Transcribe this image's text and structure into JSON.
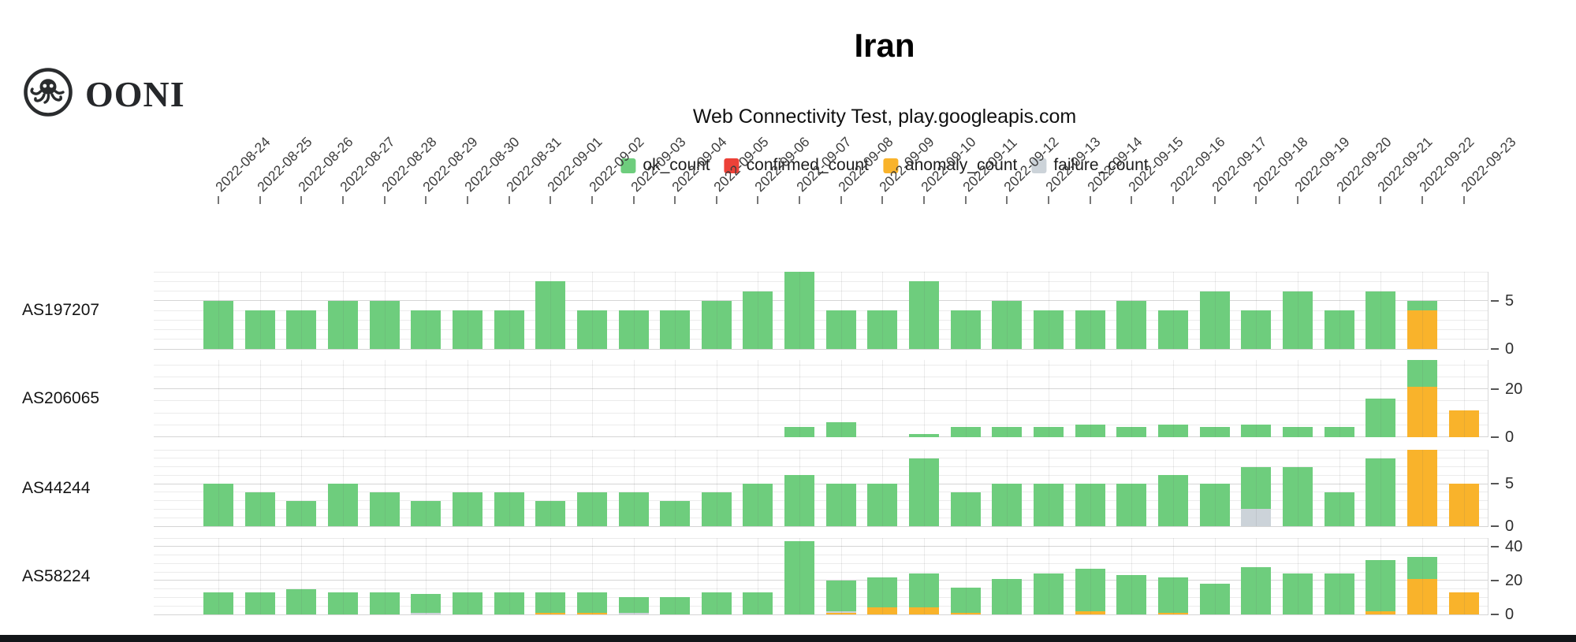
{
  "brand": {
    "logo_text": "OONI"
  },
  "header": {
    "title": "Iran",
    "subtitle": "Web Connectivity Test, play.googleapis.com"
  },
  "legend": [
    {
      "key": "ok",
      "label": "ok_count",
      "color": "#6ecd7d"
    },
    {
      "key": "confirmed",
      "label": "confirmed_count",
      "color": "#ec4138"
    },
    {
      "key": "anomaly",
      "label": "anomaly_count",
      "color": "#f9b32b"
    },
    {
      "key": "failure",
      "label": "failure_count",
      "color": "#ccd3d9"
    }
  ],
  "chart_data": {
    "type": "bar",
    "stacked": true,
    "grid": true,
    "legend_position": "top",
    "stack_order": [
      "anomaly",
      "failure",
      "ok"
    ],
    "x": [
      "2022-08-24",
      "2022-08-25",
      "2022-08-26",
      "2022-08-27",
      "2022-08-28",
      "2022-08-29",
      "2022-08-30",
      "2022-08-31",
      "2022-09-01",
      "2022-09-02",
      "2022-09-03",
      "2022-09-04",
      "2022-09-05",
      "2022-09-06",
      "2022-09-07",
      "2022-09-08",
      "2022-09-09",
      "2022-09-10",
      "2022-09-11",
      "2022-09-12",
      "2022-09-13",
      "2022-09-14",
      "2022-09-15",
      "2022-09-16",
      "2022-09-17",
      "2022-09-18",
      "2022-09-19",
      "2022-09-20",
      "2022-09-21",
      "2022-09-22",
      "2022-09-23"
    ],
    "panels": [
      {
        "label": "AS197207",
        "ylim": [
          0,
          8
        ],
        "grid_step": 1,
        "yticks": [
          0,
          5
        ],
        "series": {
          "ok": [
            5,
            4,
            4,
            5,
            5,
            4,
            4,
            4,
            7,
            4,
            4,
            4,
            5,
            6,
            8,
            4,
            4,
            7,
            4,
            5,
            4,
            4,
            5,
            4,
            6,
            4,
            6,
            4,
            6,
            1,
            0
          ],
          "anomaly": [
            0,
            0,
            0,
            0,
            0,
            0,
            0,
            0,
            0,
            0,
            0,
            0,
            0,
            0,
            0,
            0,
            0,
            0,
            0,
            0,
            0,
            0,
            0,
            0,
            0,
            0,
            0,
            0,
            0,
            4,
            0
          ],
          "failure": [
            0,
            0,
            0,
            0,
            0,
            0,
            0,
            0,
            0,
            0,
            0,
            0,
            0,
            0,
            0,
            0,
            0,
            0,
            0,
            0,
            0,
            0,
            0,
            0,
            0,
            0,
            0,
            0,
            0,
            0,
            0
          ]
        }
      },
      {
        "label": "AS206065",
        "ylim": [
          0,
          32
        ],
        "grid_step": 5,
        "yticks": [
          0,
          20
        ],
        "series": {
          "ok": [
            0,
            0,
            0,
            0,
            0,
            0,
            0,
            0,
            0,
            0,
            0,
            0,
            0,
            0,
            4,
            6,
            0,
            1,
            4,
            4,
            4,
            5,
            4,
            5,
            4,
            5,
            4,
            4,
            16,
            11,
            0
          ],
          "anomaly": [
            0,
            0,
            0,
            0,
            0,
            0,
            0,
            0,
            0,
            0,
            0,
            0,
            0,
            0,
            0,
            0,
            0,
            0,
            0,
            0,
            0,
            0,
            0,
            0,
            0,
            0,
            0,
            0,
            0,
            21,
            11
          ],
          "failure": [
            0,
            0,
            0,
            0,
            0,
            0,
            0,
            0,
            0,
            0,
            0,
            0,
            0,
            0,
            0,
            0,
            0,
            0,
            0,
            0,
            0,
            0,
            0,
            0,
            0,
            0,
            0,
            0,
            0,
            0,
            0
          ]
        }
      },
      {
        "label": "AS44244",
        "ylim": [
          0,
          9
        ],
        "grid_step": 1,
        "yticks": [
          0,
          5
        ],
        "series": {
          "ok": [
            5,
            4,
            3,
            5,
            4,
            3,
            4,
            4,
            3,
            4,
            4,
            3,
            4,
            5,
            6,
            5,
            5,
            8,
            4,
            5,
            5,
            5,
            5,
            6,
            5,
            5,
            7,
            4,
            8,
            0,
            0
          ],
          "anomaly": [
            0,
            0,
            0,
            0,
            0,
            0,
            0,
            0,
            0,
            0,
            0,
            0,
            0,
            0,
            0,
            0,
            0,
            0,
            0,
            0,
            0,
            0,
            0,
            0,
            0,
            0,
            0,
            0,
            0,
            9,
            5
          ],
          "failure": [
            0,
            0,
            0,
            0,
            0,
            0,
            0,
            0,
            0,
            0,
            0,
            0,
            0,
            0,
            0,
            0,
            0,
            0,
            0,
            0,
            0,
            0,
            0,
            0,
            0,
            2,
            0,
            0,
            0,
            0,
            0
          ]
        }
      },
      {
        "label": "AS58224",
        "ylim": [
          0,
          45
        ],
        "grid_step": 5,
        "yticks": [
          0,
          20,
          40
        ],
        "series": {
          "ok": [
            13,
            13,
            15,
            13,
            13,
            11,
            13,
            13,
            12,
            12,
            9,
            10,
            13,
            13,
            43,
            18,
            18,
            20,
            15,
            21,
            24,
            25,
            23,
            21,
            18,
            28,
            24,
            24,
            30,
            13,
            0
          ],
          "anomaly": [
            0,
            0,
            0,
            0,
            0,
            0,
            0,
            0,
            1,
            1,
            0,
            0,
            0,
            0,
            0,
            1,
            4,
            4,
            1,
            0,
            0,
            2,
            0,
            1,
            0,
            0,
            0,
            0,
            2,
            21,
            13
          ],
          "failure": [
            0,
            0,
            0,
            0,
            0,
            1,
            0,
            0,
            0,
            0,
            1,
            0,
            0,
            0,
            0,
            1,
            0,
            0,
            0,
            0,
            0,
            0,
            0,
            0,
            0,
            0,
            0,
            0,
            0,
            0,
            0
          ]
        }
      }
    ]
  }
}
